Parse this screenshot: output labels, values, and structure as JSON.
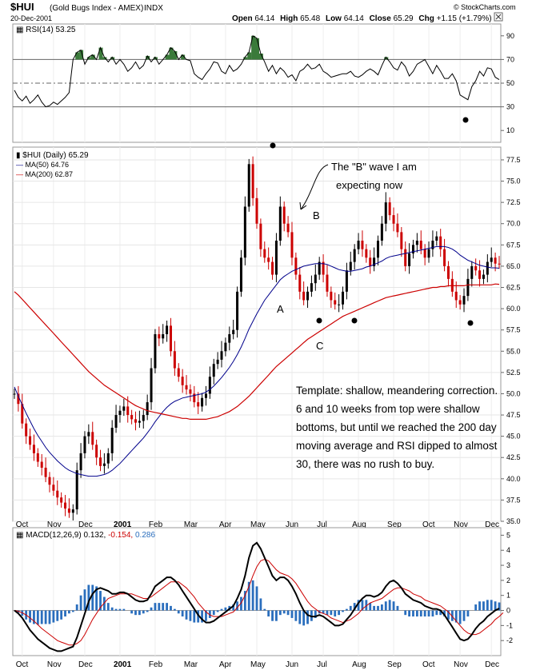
{
  "header": {
    "symbol": "$HUI",
    "name": "(Gold Bugs Index - AMEX)",
    "exchange": "INDX",
    "date": "20-Dec-2001",
    "watermark": "© StockCharts.com",
    "open_label": "Open",
    "open": "64.14",
    "high_label": "High",
    "high": "65.48",
    "low_label": "Low",
    "low": "64.14",
    "close_label": "Close",
    "close": "65.29",
    "chg_label": "Chg",
    "chg": "+1.15 (+1.79%)"
  },
  "colors": {
    "candle_up": "#000000",
    "candle_down": "#cc0000",
    "ma50": "#00008b",
    "ma200": "#cc0000",
    "macd_line": "#000000",
    "signal_line": "#cc0000",
    "histogram": "#2a6ebd",
    "rsi_fill": "#3a7a3a"
  },
  "months": [
    "Oct",
    "Nov",
    "Dec",
    "2001",
    "Feb",
    "Mar",
    "Apr",
    "May",
    "Jun",
    "Jul",
    "Aug",
    "Sep",
    "Oct",
    "Nov",
    "Dec"
  ],
  "annotations": {
    "b_wave_1": "The \"B\" wave I am",
    "b_wave_2": "expecting now",
    "label_a": "A",
    "label_b": "B",
    "label_c": "C",
    "template": [
      "Template: shallow, meandering correction.",
      "6 and 10 weeks from top were shallow",
      "bottoms, but until we reached the 200 day",
      "moving average and RSI dipped to almost",
      "30, there was no rush to buy."
    ]
  },
  "chart_data": [
    {
      "type": "line",
      "panel": "rsi",
      "legend": "RSI(14) 53.25",
      "ylim": [
        0,
        100
      ],
      "yticks": [
        10,
        30,
        50,
        70,
        90
      ],
      "reference_lines": [
        30,
        50,
        70
      ],
      "series": [
        {
          "values": [
            44,
            38,
            35,
            39,
            33,
            36,
            40,
            34,
            30,
            31,
            34,
            32,
            35,
            38,
            42,
            70,
            76,
            78,
            66,
            72,
            74,
            70,
            80,
            72,
            68,
            72,
            66,
            70,
            66,
            60,
            63,
            68,
            62,
            65,
            73,
            68,
            72,
            66,
            70,
            74,
            80,
            77,
            70,
            74,
            70,
            69,
            58,
            55,
            53,
            58,
            62,
            68,
            67,
            60,
            58,
            65,
            60,
            62,
            66,
            72,
            76,
            90,
            88,
            75,
            68,
            60,
            65,
            58,
            63,
            60,
            55,
            57,
            52,
            60,
            62,
            66,
            62,
            63,
            66,
            60,
            58,
            55,
            56,
            57,
            58,
            58,
            60,
            56,
            55,
            57,
            60,
            62,
            60,
            57,
            65,
            72,
            68,
            63,
            61,
            68,
            64,
            56,
            60,
            66,
            68,
            70,
            64,
            58,
            65,
            60,
            54,
            54,
            58,
            52,
            40,
            38,
            36,
            47,
            52,
            60,
            56,
            63,
            62,
            55,
            53
          ]
        }
      ]
    },
    {
      "type": "line",
      "panel": "price",
      "title": "$HUI (Daily) 65.29",
      "legend": [
        "MA(50) 64.76",
        "MA(200) 62.87"
      ],
      "ylim": [
        35,
        79
      ],
      "yticks": [
        35.0,
        37.5,
        40.0,
        42.5,
        45.0,
        47.5,
        50.0,
        52.5,
        55.0,
        57.5,
        60.0,
        62.5,
        65.0,
        67.5,
        70.0,
        72.5,
        75.0,
        77.5
      ],
      "series": [
        {
          "name": "$HUI",
          "values": [
            50.0,
            48.8,
            46.5,
            45.0,
            44.0,
            43.0,
            42.0,
            41.3,
            40.2,
            39.3,
            38.6,
            37.8,
            37.2,
            36.5,
            36.0,
            36.4,
            41.0,
            43.0,
            45.0,
            45.5,
            44.0,
            42.5,
            41.5,
            41.8,
            43.0,
            46.0,
            47.5,
            48.0,
            48.5,
            47.5,
            47.0,
            46.6,
            46.8,
            47.5,
            49.0,
            53.0,
            57.0,
            56.5,
            57.0,
            58.0,
            55.0,
            53.0,
            52.0,
            51.0,
            50.5,
            50.0,
            49.0,
            48.5,
            49.5,
            50.0,
            52.0,
            53.5,
            54.0,
            55.0,
            56.0,
            57.0,
            57.5,
            62.0,
            66.0,
            72.0,
            77.0,
            73.0,
            70.0,
            67.0,
            66.0,
            65.5,
            64.0,
            68.0,
            72.0,
            70.0,
            69.0,
            66.0,
            64.0,
            62.0,
            61.0,
            62.0,
            63.0,
            64.0,
            65.5,
            64.0,
            62.0,
            61.0,
            60.5,
            60.5,
            62.0,
            64.5,
            65.5,
            67.0,
            68.0,
            67.0,
            66.0,
            65.0,
            66.0,
            68.0,
            70.0,
            72.5,
            71.0,
            70.0,
            69.0,
            67.0,
            65.0,
            66.5,
            67.5,
            68.0,
            67.0,
            66.0,
            67.0,
            68.0,
            68.5,
            67.0,
            65.0,
            63.5,
            62.0,
            61.0,
            60.5,
            61.5,
            63.5,
            65.0,
            64.5,
            63.5,
            64.0,
            65.5,
            66.0,
            65.3,
            65.29
          ]
        },
        {
          "name": "MA(50)",
          "values": [
            50.8,
            49.7,
            48.7,
            47.7,
            46.8,
            45.9,
            45.1,
            44.4,
            43.7,
            43.1,
            42.6,
            42.1,
            41.7,
            41.3,
            41.0,
            40.8,
            40.6,
            40.5,
            40.4,
            40.3,
            40.3,
            40.3,
            40.4,
            40.5,
            40.7,
            41.0,
            41.4,
            41.8,
            42.3,
            42.8,
            43.3,
            43.8,
            44.3,
            44.8,
            45.4,
            46.0,
            46.7,
            47.3,
            47.9,
            48.4,
            48.8,
            49.1,
            49.3,
            49.5,
            49.6,
            49.7,
            49.8,
            49.9,
            50.0,
            50.2,
            50.5,
            50.9,
            51.4,
            51.9,
            52.5,
            53.1,
            53.8,
            54.6,
            55.5,
            56.5,
            57.6,
            58.5,
            59.4,
            60.2,
            61.0,
            61.6,
            62.2,
            62.8,
            63.4,
            63.8,
            64.1,
            64.4,
            64.6,
            64.8,
            65.0,
            65.1,
            65.2,
            65.3,
            65.3,
            65.3,
            65.2,
            65.0,
            64.8,
            64.6,
            64.5,
            64.4,
            64.4,
            64.5,
            64.6,
            64.7,
            64.9,
            65.0,
            65.2,
            65.4,
            65.6,
            65.9,
            66.1,
            66.2,
            66.3,
            66.4,
            66.5,
            66.6,
            66.7,
            66.8,
            66.9,
            67.0,
            67.1,
            67.2,
            67.3,
            67.3,
            67.3,
            67.2,
            67.0,
            66.7,
            66.3,
            66.0,
            65.7,
            65.5,
            65.3,
            65.1,
            65.0,
            64.9,
            64.8,
            64.8,
            64.76
          ]
        },
        {
          "name": "MA(200)",
          "values": [
            62.0,
            61.6,
            61.1,
            60.6,
            60.1,
            59.6,
            59.1,
            58.6,
            58.1,
            57.6,
            57.1,
            56.6,
            56.1,
            55.6,
            55.1,
            54.6,
            54.1,
            53.6,
            53.1,
            52.6,
            52.2,
            51.8,
            51.4,
            51.0,
            50.7,
            50.4,
            50.1,
            49.8,
            49.5,
            49.2,
            48.9,
            48.6,
            48.4,
            48.2,
            48.0,
            47.9,
            47.8,
            47.7,
            47.6,
            47.5,
            47.4,
            47.3,
            47.2,
            47.1,
            47.1,
            47.0,
            47.0,
            47.0,
            47.0,
            47.0,
            47.1,
            47.2,
            47.3,
            47.5,
            47.7,
            47.9,
            48.2,
            48.5,
            48.9,
            49.3,
            49.7,
            50.2,
            50.7,
            51.2,
            51.7,
            52.2,
            52.7,
            53.2,
            53.6,
            54.0,
            54.4,
            54.8,
            55.2,
            55.6,
            56.0,
            56.4,
            56.7,
            57.0,
            57.3,
            57.6,
            57.9,
            58.2,
            58.5,
            58.8,
            59.1,
            59.3,
            59.5,
            59.7,
            59.9,
            60.1,
            60.3,
            60.5,
            60.7,
            60.9,
            61.1,
            61.3,
            61.4,
            61.5,
            61.6,
            61.7,
            61.8,
            61.9,
            62.0,
            62.1,
            62.2,
            62.3,
            62.4,
            62.5,
            62.5,
            62.6,
            62.6,
            62.7,
            62.7,
            62.7,
            62.7,
            62.7,
            62.8,
            62.8,
            62.8,
            62.8,
            62.8,
            62.8,
            62.8,
            62.9,
            62.87
          ]
        }
      ]
    },
    {
      "type": "line",
      "panel": "macd",
      "legend_label": "MACD(12,26,9)",
      "legend_macd": "0.132,",
      "legend_signal": "-0.154,",
      "legend_hist": "0.286",
      "ylim": [
        -3,
        5.5
      ],
      "yticks": [
        -2,
        -1,
        0,
        1,
        2,
        3,
        4,
        5
      ],
      "series": [
        {
          "name": "MACD",
          "values": [
            0,
            -0.2,
            -0.5,
            -0.9,
            -1.3,
            -1.6,
            -1.9,
            -2.1,
            -2.3,
            -2.5,
            -2.6,
            -2.7,
            -2.7,
            -2.6,
            -2.5,
            -2.4,
            -1.8,
            -1.0,
            -0.2,
            0.6,
            1.1,
            1.4,
            1.5,
            1.4,
            1.3,
            1.1,
            1.1,
            1.2,
            1.2,
            1.1,
            0.9,
            0.7,
            0.6,
            0.6,
            0.7,
            1.1,
            1.6,
            1.8,
            2.0,
            2.2,
            2.2,
            2.0,
            1.7,
            1.3,
            0.9,
            0.5,
            0.1,
            -0.3,
            -0.6,
            -0.8,
            -0.8,
            -0.7,
            -0.5,
            -0.3,
            -0.1,
            0.1,
            0.3,
            0.8,
            1.4,
            2.3,
            3.5,
            4.3,
            4.5,
            4.1,
            3.5,
            2.9,
            2.3,
            2.0,
            2.2,
            2.2,
            2.0,
            1.6,
            1.1,
            0.5,
            0.0,
            -0.3,
            -0.4,
            -0.4,
            -0.3,
            -0.4,
            -0.6,
            -0.8,
            -1.0,
            -1.0,
            -0.9,
            -0.6,
            -0.3,
            0.1,
            0.5,
            0.8,
            1.0,
            1.0,
            0.9,
            1.0,
            1.2,
            1.6,
            1.9,
            2.0,
            1.8,
            1.5,
            1.1,
            0.9,
            0.7,
            0.6,
            0.5,
            0.3,
            0.2,
            0.1,
            0.1,
            0.0,
            -0.3,
            -0.7,
            -1.1,
            -1.5,
            -1.9,
            -2.0,
            -1.9,
            -1.6,
            -1.2,
            -0.9,
            -0.7,
            -0.4,
            -0.2,
            0.0,
            0.132
          ]
        },
        {
          "name": "Signal",
          "values": [
            0,
            -0.05,
            -0.15,
            -0.3,
            -0.5,
            -0.7,
            -0.95,
            -1.2,
            -1.4,
            -1.6,
            -1.8,
            -2.0,
            -2.1,
            -2.2,
            -2.3,
            -2.3,
            -2.2,
            -2.0,
            -1.6,
            -1.1,
            -0.6,
            -0.2,
            0.2,
            0.5,
            0.8,
            0.9,
            1.0,
            1.1,
            1.1,
            1.1,
            1.1,
            1.0,
            0.9,
            0.8,
            0.8,
            0.9,
            1.1,
            1.3,
            1.5,
            1.7,
            1.9,
            1.9,
            1.9,
            1.7,
            1.5,
            1.2,
            0.9,
            0.5,
            0.2,
            -0.1,
            -0.3,
            -0.4,
            -0.4,
            -0.4,
            -0.3,
            -0.2,
            -0.1,
            0.2,
            0.5,
            1.0,
            1.6,
            2.3,
            2.9,
            3.3,
            3.4,
            3.3,
            3.0,
            2.7,
            2.5,
            2.4,
            2.3,
            2.1,
            1.8,
            1.4,
            1.0,
            0.6,
            0.3,
            0.1,
            -0.1,
            -0.2,
            -0.3,
            -0.5,
            -0.6,
            -0.7,
            -0.8,
            -0.7,
            -0.6,
            -0.4,
            -0.2,
            0.1,
            0.3,
            0.5,
            0.6,
            0.7,
            0.8,
            1.0,
            1.2,
            1.4,
            1.5,
            1.5,
            1.4,
            1.3,
            1.1,
            1.0,
            0.9,
            0.7,
            0.6,
            0.5,
            0.4,
            0.3,
            0.1,
            -0.1,
            -0.4,
            -0.7,
            -1.0,
            -1.3,
            -1.5,
            -1.6,
            -1.6,
            -1.5,
            -1.3,
            -1.1,
            -0.9,
            -0.6,
            -0.4,
            -0.154
          ]
        }
      ]
    }
  ]
}
